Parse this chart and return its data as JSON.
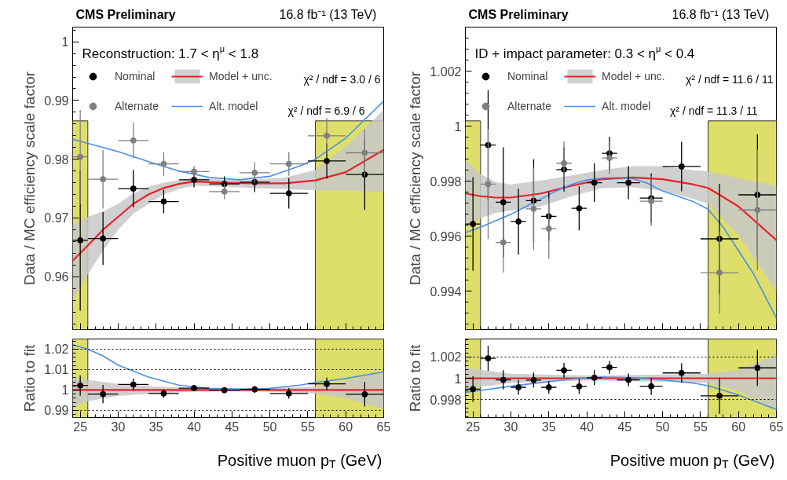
{
  "chart_data": [
    {
      "type": "scatter",
      "title": "CMS Preliminary",
      "subtitle": "16.8 fb⁻¹ (13 TeV)",
      "ylabel": "Data / MC efficiency scale factor",
      "annotations": [
        "Reconstruction: 1.7 < η$^{μ}$ < 1.8",
        "χ² / ndf = 3.0 / 6",
        "χ² / ndf = 6.9 / 6"
      ],
      "xlim": [
        24,
        65
      ],
      "xticks": [
        25,
        30,
        35,
        40,
        45,
        50,
        55,
        60,
        65
      ],
      "ylim": [
        0.951,
        1.0025
      ],
      "yticks": [
        0.96,
        0.97,
        0.98,
        0.99,
        1
      ],
      "tick_labels": "y",
      "legend": "top left",
      "bands": [
        {
          "axis": "x",
          "from": 24,
          "to": 26,
          "color": "#dede6a"
        },
        {
          "axis": "x",
          "from": 56,
          "to": 65,
          "color": "#dede6a"
        }
      ],
      "series": [
        {
          "name": "Nominal",
          "marker": "circle",
          "color": "#000000",
          "x": [
            25,
            28,
            32,
            36,
            40,
            44,
            48,
            52.5,
            57.5,
            62.5
          ],
          "values": [
            0.9662,
            0.9665,
            0.975,
            0.9728,
            0.9765,
            0.9758,
            0.9761,
            0.9742,
            0.9797,
            0.9774
          ],
          "errors": [
            0.012,
            0.0045,
            0.0032,
            0.002,
            0.0013,
            0.0013,
            0.0017,
            0.0026,
            0.003,
            0.006
          ],
          "xerrors": [
            1,
            2,
            2,
            2,
            2,
            2,
            2,
            2.5,
            2.5,
            2.5
          ]
        },
        {
          "name": "Alternate",
          "marker": "circle",
          "color": "#7f7f7f",
          "x": [
            25,
            28,
            32,
            36,
            40,
            44,
            48,
            52.5,
            57.5,
            62.5
          ],
          "values": [
            0.9804,
            0.9766,
            0.9832,
            0.9792,
            0.9779,
            0.9745,
            0.9777,
            0.9792,
            0.984,
            0.9811
          ],
          "errors": [
            0.008,
            0.005,
            0.003,
            0.002,
            0.001,
            0.0013,
            0.0018,
            0.002,
            0.003,
            0.004
          ],
          "xerrors": [
            1,
            2,
            2,
            2,
            2,
            2,
            2,
            2.5,
            2.5,
            2.5
          ]
        },
        {
          "name": "Model + unc.",
          "type": "line",
          "color": "#e8202a",
          "x": [
            24,
            26,
            28,
            30,
            32,
            34,
            36,
            38,
            40,
            44,
            48,
            52,
            56,
            60,
            65
          ],
          "values": [
            0.9627,
            0.9653,
            0.968,
            0.9702,
            0.9724,
            0.974,
            0.9751,
            0.9758,
            0.9762,
            0.976,
            0.9759,
            0.9759,
            0.9764,
            0.9778,
            0.9816
          ],
          "upper": [
            0.9689,
            0.9702,
            0.9711,
            0.9724,
            0.9742,
            0.9753,
            0.976,
            0.9764,
            0.9769,
            0.9765,
            0.9765,
            0.9769,
            0.9782,
            0.9822,
            0.9884
          ],
          "lower": [
            0.956,
            0.9604,
            0.9644,
            0.968,
            0.9707,
            0.9724,
            0.974,
            0.9749,
            0.9755,
            0.9753,
            0.9751,
            0.9749,
            0.9747,
            0.9747,
            0.9744
          ]
        },
        {
          "name": "Alt. model",
          "type": "line",
          "color": "#4a8fe8",
          "x": [
            24,
            26,
            30,
            34,
            38,
            42,
            46,
            50,
            54,
            56,
            60,
            65
          ],
          "values": [
            0.9834,
            0.9827,
            0.9813,
            0.9796,
            0.978,
            0.9769,
            0.9765,
            0.9771,
            0.9789,
            0.98,
            0.9836,
            0.9899
          ]
        }
      ]
    },
    {
      "type": "scatter",
      "title": "CMS Preliminary",
      "subtitle": "16.8 fb⁻¹ (13 TeV)",
      "ylabel": "Data / MC efficiency scale factor",
      "annotations": [
        "ID + impact parameter: 0.3 < η$^{μ}$ < 0.4",
        "χ² / ndf = 11.6 / 11",
        "χ² / ndf = 11.3 / 11"
      ],
      "xlim": [
        24,
        65
      ],
      "xticks": [
        25,
        30,
        35,
        40,
        45,
        50,
        55,
        60,
        65
      ],
      "ylim": [
        0.9926,
        1.0036
      ],
      "yticks": [
        0.994,
        0.996,
        0.998,
        1,
        1.002
      ],
      "tick_labels": "y",
      "legend": "top left",
      "bands": [
        {
          "axis": "x",
          "from": 24,
          "to": 26,
          "color": "#dede6a"
        },
        {
          "axis": "x",
          "from": 56,
          "to": 65,
          "color": "#dede6a"
        }
      ],
      "series": [
        {
          "name": "Nominal",
          "marker": "circle",
          "color": "#000000",
          "x": [
            25,
            27,
            29,
            31,
            33,
            35,
            37,
            39,
            41,
            43,
            45.5,
            48.5,
            52.5,
            57.5,
            62.5
          ],
          "values": [
            0.99644,
            0.99931,
            0.99723,
            0.99653,
            0.99729,
            0.99672,
            0.99842,
            0.99701,
            0.99794,
            0.99901,
            0.99794,
            0.99738,
            0.99853,
            0.9959,
            0.9975
          ],
          "errors": [
            0.0017,
            0.002,
            0.002,
            0.0012,
            0.0015,
            0.0009,
            0.0008,
            0.0008,
            0.0007,
            0.0006,
            0.0006,
            0.0009,
            0.0009,
            0.002,
            0.0022
          ],
          "xerrors": [
            1,
            1,
            1,
            1,
            1,
            1,
            1,
            1,
            1,
            1,
            1.5,
            1.5,
            2.5,
            2.5,
            2.5
          ]
        },
        {
          "name": "Alternate",
          "marker": "circle",
          "color": "#7f7f7f",
          "x": [
            27,
            29,
            33,
            35,
            37,
            43,
            48.5,
            57.5,
            62.5
          ],
          "values": [
            0.99789,
            0.99577,
            0.99699,
            0.99627,
            0.99865,
            0.99884,
            0.99727,
            0.99467,
            0.99695
          ],
          "errors": [
            0.002,
            0.0011,
            0.0015,
            0.0011,
            0.0008,
            0.0006,
            0.0009,
            0.0015,
            0.0022
          ],
          "xerrors": [
            1,
            1,
            1,
            1,
            1,
            1,
            1.5,
            2.5,
            2.5
          ]
        },
        {
          "name": "Model + unc.",
          "type": "line",
          "color": "#e8202a",
          "x": [
            24,
            26,
            28,
            30,
            34,
            38,
            42,
            46,
            50,
            54,
            56,
            60,
            65
          ],
          "values": [
            0.99755,
            0.99745,
            0.9974,
            0.9974,
            0.99755,
            0.99783,
            0.99807,
            0.99813,
            0.99807,
            0.99788,
            0.99775,
            0.99708,
            0.99585
          ],
          "upper": [
            0.99877,
            0.99825,
            0.99797,
            0.99788,
            0.99802,
            0.99821,
            0.9984,
            0.99854,
            0.99854,
            0.9984,
            0.99835,
            0.99811,
            0.99783
          ],
          "lower": [
            0.99642,
            0.99665,
            0.99684,
            0.99693,
            0.99708,
            0.99745,
            0.99774,
            0.99778,
            0.99764,
            0.99736,
            0.99717,
            0.99604,
            0.99396
          ]
        },
        {
          "name": "Alt. model",
          "type": "line",
          "color": "#4a8fe8",
          "x": [
            24,
            26,
            28,
            30,
            32,
            34,
            36,
            38,
            40,
            42,
            44,
            46,
            48,
            50,
            52,
            54,
            56,
            58,
            60,
            62,
            65
          ],
          "values": [
            0.99613,
            0.99632,
            0.99656,
            0.99679,
            0.99708,
            0.99736,
            0.99764,
            0.99788,
            0.99804,
            0.99811,
            0.99813,
            0.99809,
            0.99792,
            0.99764,
            0.99745,
            0.99726,
            0.99698,
            0.99632,
            0.99547,
            0.99462,
            0.99302
          ]
        }
      ]
    },
    {
      "type": "scatter",
      "xlabel": "Positive muon p$_{T}$ (GeV)",
      "ylabel": "Ratio to fit",
      "xlim": [
        24,
        65
      ],
      "xticks": [
        25,
        30,
        35,
        40,
        45,
        50,
        55,
        60,
        65
      ],
      "ylim": [
        0.9865,
        1.025
      ],
      "yticks": [
        0.99,
        1,
        1.01,
        1.02
      ],
      "ref_lines": [
        {
          "axis": "y",
          "value": 1.02,
          "line_style": "dotted"
        },
        {
          "axis": "y",
          "value": 1.01,
          "line_style": "dotted"
        },
        {
          "axis": "y",
          "value": 0.99,
          "line_style": "dotted"
        }
      ],
      "bands": [
        {
          "axis": "x",
          "from": 24,
          "to": 26,
          "color": "#dede6a"
        },
        {
          "axis": "x",
          "from": 56,
          "to": 65,
          "color": "#dede6a"
        }
      ],
      "series": [
        {
          "marker": "circle",
          "color": "#000000",
          "x": [
            25,
            28,
            32,
            36,
            40,
            44,
            48,
            52.5,
            57.5,
            62.5
          ],
          "values": [
            1.0022,
            0.998,
            1.0027,
            0.9983,
            1.0009,
            0.9999,
            1.0003,
            0.9983,
            1.003,
            0.9979
          ],
          "errors": [
            0.005,
            0.0045,
            0.003,
            0.002,
            0.0013,
            0.0013,
            0.0017,
            0.0026,
            0.003,
            0.006
          ],
          "xerrors": [
            1,
            2,
            2,
            2,
            2,
            2,
            2,
            2.5,
            2.5,
            2.5
          ]
        },
        {
          "type": "line",
          "color": "#e8202a",
          "x": [
            24,
            26,
            30,
            35,
            40,
            45,
            50,
            56,
            60,
            65
          ],
          "values": [
            1,
            1,
            1,
            1,
            1,
            1,
            1,
            1,
            1,
            1
          ],
          "upper": [
            1.0063,
            1.005,
            1.003,
            1.0017,
            1.0008,
            1.0007,
            1.0008,
            1.0017,
            1.0043,
            1.0089
          ],
          "lower": [
            0.9919,
            0.9945,
            0.9971,
            0.9983,
            0.9992,
            0.9993,
            0.9992,
            0.9982,
            0.9958,
            0.9906
          ]
        },
        {
          "type": "line",
          "color": "#4a8fe8",
          "x": [
            24,
            26,
            28,
            30,
            34,
            38,
            42,
            46,
            50,
            54,
            56,
            60,
            65
          ],
          "values": [
            1.0222,
            1.02,
            1.0167,
            1.0122,
            1.0063,
            1.0024,
            1.0008,
            1.0004,
            1.0008,
            1.0024,
            1.0037,
            1.0056,
            1.0089
          ]
        }
      ]
    },
    {
      "type": "scatter",
      "xlabel": "Positive muon p$_{T}$ (GeV)",
      "ylabel": "Ratio to fit",
      "xlim": [
        24,
        65
      ],
      "xticks": [
        25,
        30,
        35,
        40,
        45,
        50,
        55,
        60,
        65
      ],
      "ylim": [
        0.9963,
        1.0037
      ],
      "yticks": [
        0.998,
        1,
        1.002
      ],
      "ref_lines": [
        {
          "axis": "y",
          "value": 1.002,
          "line_style": "dotted"
        },
        {
          "axis": "y",
          "value": 0.998,
          "line_style": "dotted"
        }
      ],
      "bands": [
        {
          "axis": "x",
          "from": 24,
          "to": 26,
          "color": "#dede6a"
        },
        {
          "axis": "x",
          "from": 56,
          "to": 65,
          "color": "#dede6a"
        }
      ],
      "series": [
        {
          "marker": "circle",
          "color": "#000000",
          "x": [
            25,
            27,
            29,
            31,
            33,
            35,
            37,
            39,
            41,
            43,
            45.5,
            48.5,
            52.5,
            57.5,
            62.5
          ],
          "values": [
            0.99898,
            1.00188,
            0.99985,
            0.99915,
            0.99983,
            0.99915,
            1.00075,
            0.99923,
            1.00005,
            1.00103,
            0.99985,
            0.99925,
            1.0005,
            0.99835,
            1.00098
          ],
          "errors": [
            0.0012,
            0.0012,
            0.0009,
            0.0007,
            0.0007,
            0.0006,
            0.0007,
            0.0007,
            0.0007,
            0.0006,
            0.0006,
            0.0008,
            0.0009,
            0.0017,
            0.0017
          ],
          "xerrors": [
            1,
            1,
            1,
            1,
            1,
            1,
            1,
            1,
            1,
            1,
            1.5,
            1.5,
            2.5,
            2.5,
            2.5
          ]
        },
        {
          "type": "line",
          "color": "#e8202a",
          "x": [
            24,
            26,
            30,
            40,
            50,
            56,
            60,
            65
          ],
          "values": [
            1,
            1,
            1,
            1,
            1,
            1,
            1,
            1
          ],
          "upper": [
            1.00105,
            1.0008,
            1.00043,
            1.00025,
            1.00035,
            1.00043,
            1.0008,
            1.00218
          ],
          "lower": [
            0.99893,
            0.99918,
            0.99955,
            0.9998,
            0.99968,
            0.99955,
            0.9988,
            0.99705
          ]
        },
        {
          "type": "line",
          "color": "#4a8fe8",
          "x": [
            24,
            26,
            30,
            34,
            38,
            42,
            46,
            50,
            54,
            56,
            60,
            65
          ],
          "values": [
            0.99868,
            0.99885,
            0.99925,
            0.9996,
            0.99993,
            1.0001,
            1.00005,
            0.99985,
            0.99955,
            0.9993,
            0.99843,
            0.99705
          ]
        }
      ]
    }
  ]
}
